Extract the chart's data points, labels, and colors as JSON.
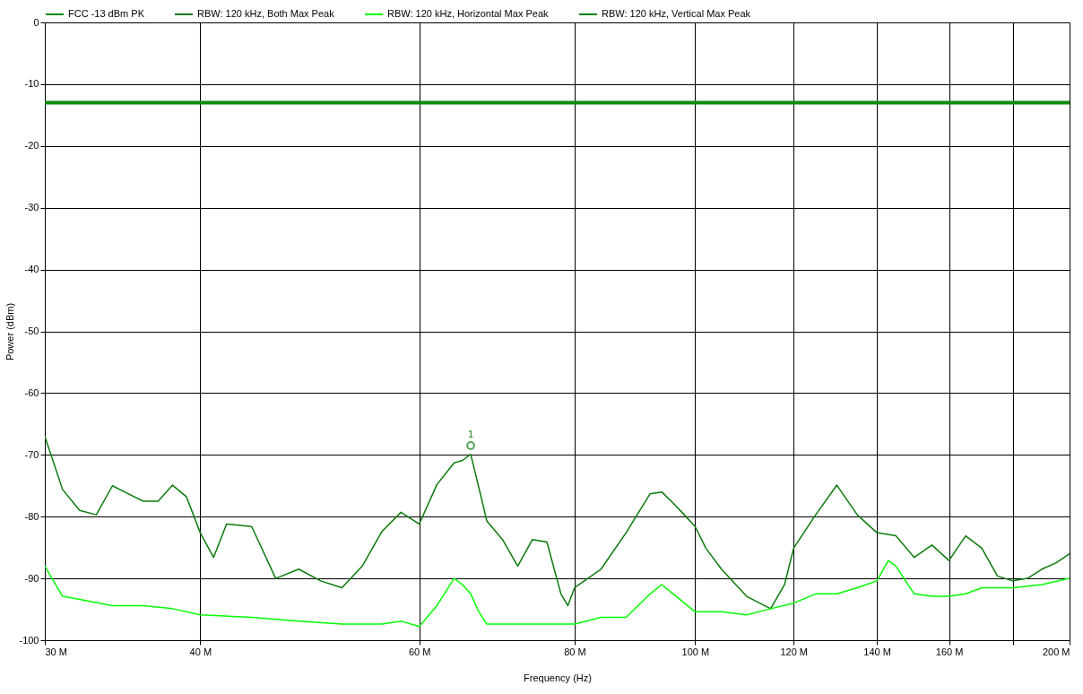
{
  "chart_data": {
    "type": "line",
    "xlabel": "Frequency (Hz)",
    "ylabel": "Power (dBm)",
    "log": "x",
    "grid": true,
    "legend": "top",
    "xlim": [
      30,
      200
    ],
    "ylim": [
      -100,
      0
    ],
    "xticks": [
      {
        "value": 30,
        "label": "30 M"
      },
      {
        "value": 40,
        "label": "40 M"
      },
      {
        "value": 60,
        "label": "60 M"
      },
      {
        "value": 80,
        "label": "80 M"
      },
      {
        "value": 100,
        "label": "100 M"
      },
      {
        "value": 120,
        "label": "120 M"
      },
      {
        "value": 140,
        "label": "140 M"
      },
      {
        "value": 160,
        "label": "160 M"
      },
      {
        "value": 180,
        "label": null
      },
      {
        "value": 200,
        "label": "200 M"
      }
    ],
    "yticks": [
      0,
      -10,
      -20,
      -30,
      -40,
      -50,
      -60,
      -70,
      -80,
      -90,
      -100
    ],
    "ref_lines": [
      {
        "axis": "y",
        "value": -13,
        "label": "FCC -13 dBm PK",
        "color": "#0a8a0a"
      }
    ],
    "annotations": [
      {
        "text": "1",
        "x": 66,
        "y": -68.5
      }
    ],
    "series": [
      {
        "name": "RBW: 120 kHz, Both Max Peak",
        "color": "#0b7a0b",
        "x": [
          30,
          31,
          32,
          33,
          34,
          35,
          36,
          37,
          38,
          39,
          40,
          41,
          42,
          44,
          46,
          48,
          50,
          52,
          54,
          56,
          58,
          60,
          62,
          64,
          65,
          66,
          67,
          68,
          70,
          72,
          74,
          76,
          78,
          79,
          80,
          84,
          88,
          92,
          94,
          96,
          98,
          100,
          102,
          105,
          110,
          115,
          118,
          120,
          125,
          130,
          135,
          140,
          145,
          150,
          155,
          160,
          165,
          170,
          175,
          180,
          185,
          190,
          195,
          200
        ],
        "values": [
          -67,
          -75.6,
          -79,
          -79.7,
          -75,
          -76.3,
          -77.5,
          -77.5,
          -74.9,
          -76.8,
          -82.6,
          -86.6,
          -81.2,
          -81.6,
          -90,
          -88.5,
          -90.4,
          -91.5,
          -88,
          -82.4,
          -79.3,
          -81.2,
          -74.8,
          -71.3,
          -70.9,
          -69.9,
          -75.3,
          -80.7,
          -83.7,
          -88,
          -83.7,
          -84.1,
          -92.5,
          -94.4,
          -91.5,
          -88.5,
          -82.6,
          -76.3,
          -76,
          -77.8,
          -79.7,
          -81.6,
          -85.1,
          -88.5,
          -92.9,
          -94.9,
          -91,
          -85.1,
          -79.7,
          -74.9,
          -79.7,
          -82.6,
          -83.1,
          -86.6,
          -84.6,
          -87.1,
          -83.1,
          -85.1,
          -89.6,
          -90.4,
          -90,
          -88.5,
          -87.5,
          -86
        ]
      },
      {
        "name": "RBW: 120 kHz, Horizontal Max Peak",
        "color": "#00ff00",
        "x": [
          30,
          31,
          32,
          34,
          36,
          38,
          40,
          44,
          48,
          52,
          56,
          58,
          60,
          62,
          64,
          65,
          66,
          67,
          68,
          72,
          76,
          80,
          84,
          88,
          92,
          94,
          96,
          100,
          105,
          110,
          115,
          120,
          125,
          130,
          135,
          140,
          143,
          145,
          150,
          155,
          160,
          165,
          170,
          180,
          190,
          200
        ],
        "values": [
          -88,
          -92.9,
          -93.4,
          -94.4,
          -94.4,
          -94.9,
          -95.9,
          -96.3,
          -96.9,
          -97.4,
          -97.4,
          -96.9,
          -97.8,
          -94.4,
          -90,
          -91,
          -92.5,
          -95.4,
          -97.4,
          -97.4,
          -97.4,
          -97.4,
          -96.3,
          -96.3,
          -92.5,
          -91,
          -92.5,
          -95.4,
          -95.4,
          -95.9,
          -94.9,
          -94,
          -92.5,
          -92.5,
          -91.5,
          -90.4,
          -87.1,
          -88,
          -92.5,
          -92.9,
          -92.9,
          -92.5,
          -91.5,
          -91.5,
          -91,
          -90
        ]
      },
      {
        "name": "RBW: 120 kHz, Vertical Max Peak",
        "color": "#008000"
      }
    ]
  }
}
